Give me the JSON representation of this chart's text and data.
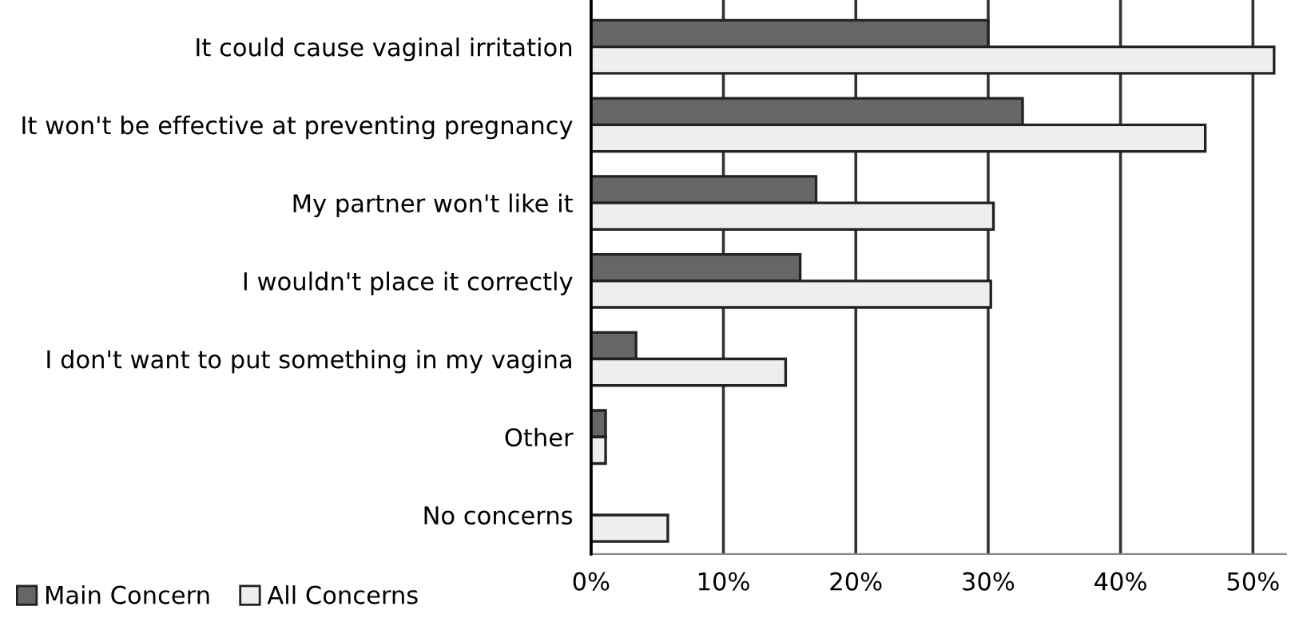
{
  "chart_data": {
    "type": "bar",
    "orientation": "horizontal",
    "categories": [
      "It could cause vaginal irritation",
      "It won't be effective at preventing pregnancy",
      "My partner won't like it",
      "I wouldn't place it correctly",
      "I don't want to put something in my vagina",
      "Other",
      "No concerns"
    ],
    "series": [
      {
        "name": "Main Concern",
        "color": "#666666",
        "values": [
          30.0,
          32.6,
          17.0,
          15.8,
          3.4,
          1.1,
          null
        ]
      },
      {
        "name": "All Concerns",
        "color": "#eeeeee",
        "values": [
          51.6,
          46.4,
          30.4,
          30.2,
          14.7,
          1.1,
          5.8
        ]
      }
    ],
    "xlim": [
      0,
      52.5
    ],
    "xticks": [
      {
        "value": 0,
        "label": "0%"
      },
      {
        "value": 10,
        "label": "10%"
      },
      {
        "value": 20,
        "label": "20%"
      },
      {
        "value": 30,
        "label": "30%"
      },
      {
        "value": 40,
        "label": "40%"
      },
      {
        "value": 50,
        "label": "50%"
      }
    ],
    "grid": "x",
    "legend": "bottom left"
  }
}
